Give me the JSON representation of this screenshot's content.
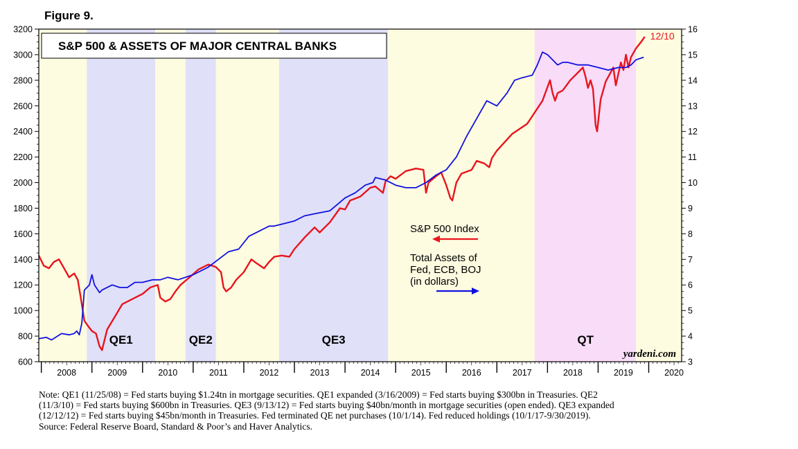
{
  "figure_label": "Figure 9.",
  "colors": {
    "sp500": "#e8141c",
    "assets": "#1010e0",
    "qe_shade": "#e0e0f8",
    "neutral_shade": "#fdfbe0",
    "qt_shade": "#f8dcf8"
  },
  "chart_data": {
    "type": "line",
    "title": "S&P 500 & ASSETS OF MAJOR CENTRAL BANKS",
    "x_range": [
      2007.95,
      2020.65
    ],
    "x_tick_labels": [
      "2008",
      "2009",
      "2010",
      "2011",
      "2012",
      "2013",
      "2014",
      "2015",
      "2016",
      "2017",
      "2018",
      "2019",
      "2020"
    ],
    "left_axis": {
      "min": 600,
      "max": 3200,
      "step": 200,
      "tick_labels": [
        "600",
        "800",
        "1000",
        "1200",
        "1400",
        "1600",
        "1800",
        "2000",
        "2200",
        "2400",
        "2600",
        "2800",
        "3000",
        "3200"
      ]
    },
    "right_axis": {
      "min": 3,
      "max": 16,
      "step": 1,
      "tick_labels": [
        "3",
        "4",
        "5",
        "6",
        "7",
        "8",
        "9",
        "10",
        "11",
        "12",
        "13",
        "14",
        "15",
        "16"
      ]
    },
    "shaded_periods": [
      {
        "label": "",
        "start": 2007.95,
        "end": 2008.9,
        "kind": "neutral"
      },
      {
        "label": "QE1",
        "start": 2008.9,
        "end": 2010.25,
        "kind": "qe"
      },
      {
        "label": "",
        "start": 2010.25,
        "end": 2010.85,
        "kind": "neutral"
      },
      {
        "label": "QE2",
        "start": 2010.85,
        "end": 2011.45,
        "kind": "qe"
      },
      {
        "label": "",
        "start": 2011.45,
        "end": 2012.7,
        "kind": "neutral"
      },
      {
        "label": "QE3",
        "start": 2012.7,
        "end": 2014.85,
        "kind": "qe"
      },
      {
        "label": "",
        "start": 2014.85,
        "end": 2017.75,
        "kind": "neutral"
      },
      {
        "label": "QT",
        "start": 2017.75,
        "end": 2019.75,
        "kind": "qt"
      },
      {
        "label": "",
        "start": 2019.75,
        "end": 2020.65,
        "kind": "neutral"
      }
    ],
    "series": [
      {
        "name": "S&P 500 Index",
        "axis": "left",
        "x": [
          2007.95,
          2008.05,
          2008.15,
          2008.25,
          2008.35,
          2008.45,
          2008.55,
          2008.65,
          2008.72,
          2008.78,
          2008.85,
          2008.92,
          2009.0,
          2009.08,
          2009.15,
          2009.2,
          2009.3,
          2009.45,
          2009.6,
          2009.75,
          2009.9,
          2010.0,
          2010.15,
          2010.3,
          2010.35,
          2010.45,
          2010.55,
          2010.65,
          2010.75,
          2010.9,
          2011.1,
          2011.3,
          2011.45,
          2011.55,
          2011.6,
          2011.65,
          2011.75,
          2011.85,
          2012.0,
          2012.15,
          2012.25,
          2012.4,
          2012.5,
          2012.6,
          2012.75,
          2012.9,
          2013.0,
          2013.2,
          2013.4,
          2013.5,
          2013.7,
          2013.9,
          2014.0,
          2014.1,
          2014.3,
          2014.5,
          2014.6,
          2014.75,
          2014.8,
          2014.9,
          2015.0,
          2015.2,
          2015.4,
          2015.55,
          2015.6,
          2015.65,
          2015.8,
          2015.9,
          2016.0,
          2016.08,
          2016.12,
          2016.2,
          2016.3,
          2016.5,
          2016.6,
          2016.75,
          2016.85,
          2016.9,
          2017.0,
          2017.3,
          2017.6,
          2017.9,
          2018.05,
          2018.1,
          2018.15,
          2018.2,
          2018.3,
          2018.45,
          2018.55,
          2018.7,
          2018.75,
          2018.8,
          2018.85,
          2018.9,
          2018.95,
          2018.98,
          2019.05,
          2019.15,
          2019.3,
          2019.35,
          2019.45,
          2019.5,
          2019.55,
          2019.6,
          2019.65,
          2019.75,
          2019.85,
          2019.92
        ],
        "values": [
          1430,
          1350,
          1330,
          1380,
          1400,
          1330,
          1260,
          1290,
          1240,
          1100,
          920,
          880,
          840,
          820,
          720,
          690,
          850,
          950,
          1050,
          1080,
          1110,
          1130,
          1180,
          1200,
          1100,
          1070,
          1090,
          1150,
          1200,
          1250,
          1320,
          1360,
          1340,
          1300,
          1180,
          1150,
          1180,
          1240,
          1300,
          1400,
          1370,
          1330,
          1380,
          1420,
          1430,
          1420,
          1480,
          1570,
          1650,
          1610,
          1690,
          1800,
          1790,
          1860,
          1890,
          1960,
          1970,
          1920,
          2010,
          2050,
          2030,
          2090,
          2110,
          2100,
          1920,
          2000,
          2050,
          2080,
          1980,
          1880,
          1860,
          2000,
          2070,
          2100,
          2170,
          2150,
          2120,
          2190,
          2250,
          2380,
          2460,
          2640,
          2800,
          2700,
          2640,
          2700,
          2720,
          2800,
          2840,
          2900,
          2830,
          2740,
          2800,
          2730,
          2450,
          2400,
          2650,
          2790,
          2900,
          2760,
          2940,
          2880,
          3000,
          2900,
          2980,
          3050,
          3100,
          3140
        ]
      },
      {
        "name": "Total Assets of Fed, ECB, BOJ (in dollars)",
        "axis": "right",
        "x": [
          2007.95,
          2008.1,
          2008.2,
          2008.4,
          2008.55,
          2008.65,
          2008.7,
          2008.75,
          2008.8,
          2008.85,
          2008.95,
          2009.0,
          2009.05,
          2009.15,
          2009.2,
          2009.3,
          2009.4,
          2009.55,
          2009.7,
          2009.85,
          2010.0,
          2010.2,
          2010.35,
          2010.5,
          2010.7,
          2011.0,
          2011.3,
          2011.5,
          2011.7,
          2011.9,
          2012.1,
          2012.3,
          2012.5,
          2012.6,
          2012.8,
          2013.0,
          2013.2,
          2013.45,
          2013.7,
          2014.0,
          2014.2,
          2014.4,
          2014.55,
          2014.6,
          2014.8,
          2015.0,
          2015.2,
          2015.4,
          2015.6,
          2015.8,
          2016.0,
          2016.2,
          2016.4,
          2016.6,
          2016.8,
          2017.0,
          2017.2,
          2017.35,
          2017.5,
          2017.7,
          2017.8,
          2017.9,
          2018.0,
          2018.2,
          2018.3,
          2018.4,
          2018.6,
          2018.8,
          2019.0,
          2019.2,
          2019.4,
          2019.55,
          2019.65,
          2019.75,
          2019.9
        ],
        "values": [
          3.9,
          3.95,
          3.85,
          4.1,
          4.05,
          4.1,
          4.2,
          4.05,
          4.5,
          5.8,
          6.0,
          6.4,
          6.0,
          5.7,
          5.8,
          5.9,
          6.0,
          5.9,
          5.9,
          6.1,
          6.1,
          6.2,
          6.2,
          6.3,
          6.2,
          6.4,
          6.7,
          7.0,
          7.3,
          7.4,
          7.9,
          8.1,
          8.3,
          8.3,
          8.4,
          8.5,
          8.7,
          8.8,
          8.9,
          9.4,
          9.6,
          9.9,
          10.0,
          10.2,
          10.1,
          9.9,
          9.8,
          9.8,
          10.0,
          10.3,
          10.5,
          11.0,
          11.8,
          12.5,
          13.2,
          13.0,
          13.5,
          14.0,
          14.1,
          14.2,
          14.6,
          15.1,
          15.0,
          14.6,
          14.7,
          14.7,
          14.6,
          14.6,
          14.5,
          14.4,
          14.5,
          14.5,
          14.6,
          14.8,
          14.9
        ]
      }
    ],
    "annotations": {
      "date_label": "12/10",
      "sp500_label": "S&P 500 Index",
      "assets_label_lines": [
        "Total Assets of",
        "Fed, ECB, BOJ",
        "(in dollars)"
      ],
      "source_mark": "yardeni.com"
    }
  },
  "note": {
    "lines": [
      "Note: QE1 (11/25/08) = Fed starts buying $1.24tn in mortgage securities. QE1 expanded (3/16/2009) = Fed starts buying $300bn in Treasuries. QE2",
      "(11/3/10) = Fed starts buying $600bn in Treasuries. QE3 (9/13/12) = Fed starts buying $40bn/month in mortgage securities (open ended). QE3 expanded",
      "(12/12/12) = Fed starts buying $45bn/month in Treasuries. Fed terminated QE net purchases (10/1/14). Fed reduced holdings (10/1/17-9/30/2019).",
      "Source: Federal Reserve Board, Standard & Poor’s and Haver Analytics."
    ]
  }
}
